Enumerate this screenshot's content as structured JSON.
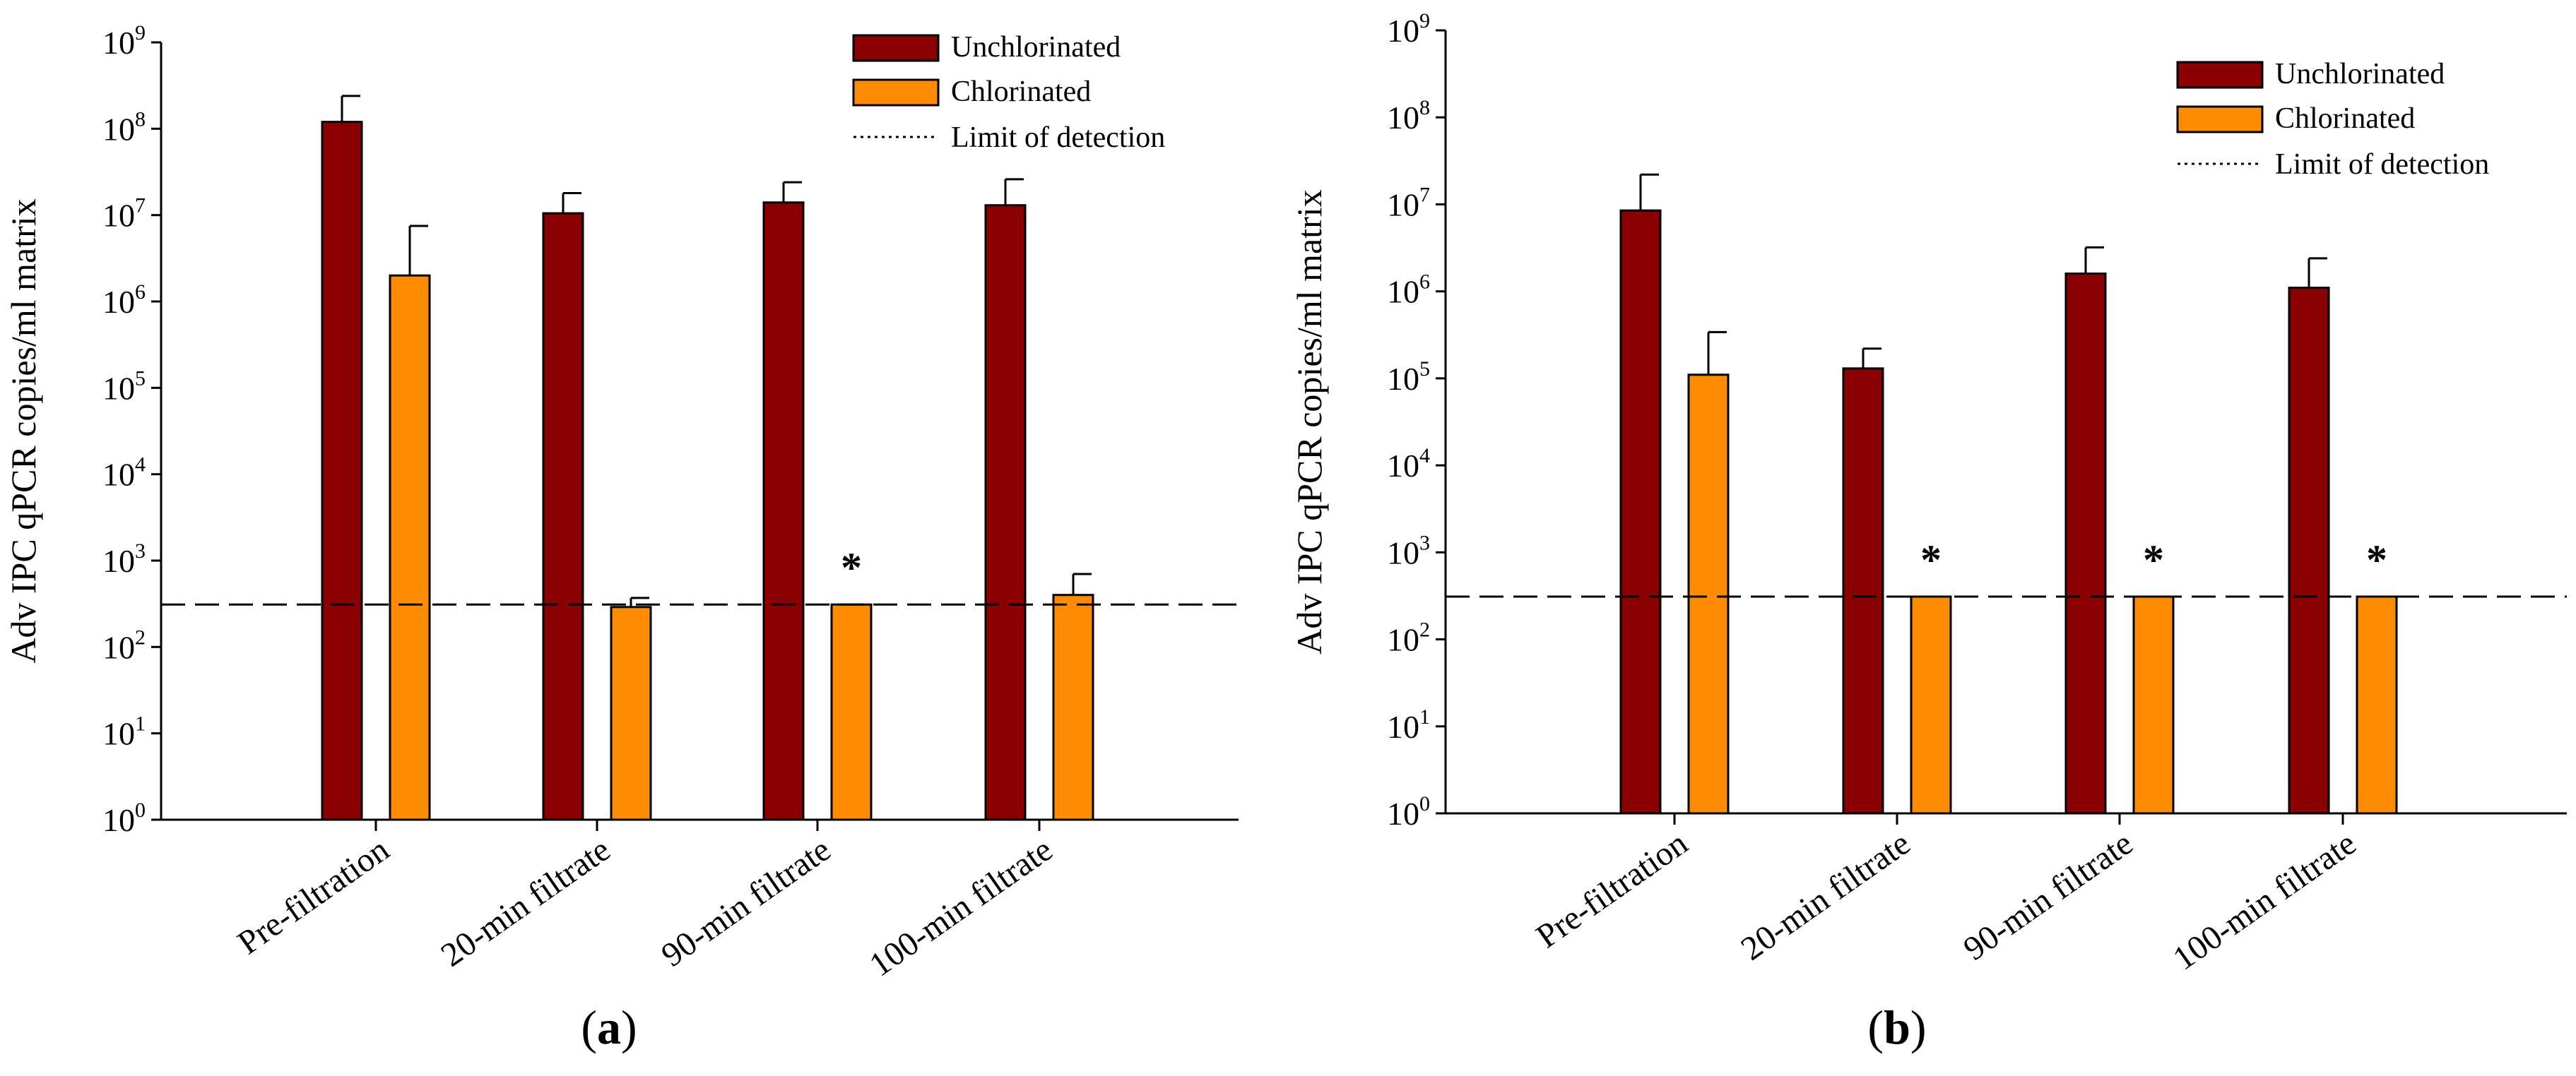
{
  "chart_data": [
    {
      "type": "bar",
      "panel": "(a)",
      "panel_open": "(",
      "panel_letter": "a",
      "panel_close": ")",
      "ylabel": "Adv IPC qPCR copies/ml matrix",
      "yscale": "log",
      "ylim": [
        1,
        1000000000
      ],
      "y_ticks": [
        {
          "base": "10",
          "exp": "0"
        },
        {
          "base": "10",
          "exp": "1"
        },
        {
          "base": "10",
          "exp": "2"
        },
        {
          "base": "10",
          "exp": "3"
        },
        {
          "base": "10",
          "exp": "4"
        },
        {
          "base": "10",
          "exp": "5"
        },
        {
          "base": "10",
          "exp": "6"
        },
        {
          "base": "10",
          "exp": "7"
        },
        {
          "base": "10",
          "exp": "8"
        },
        {
          "base": "10",
          "exp": "9"
        }
      ],
      "categories": [
        "Pre-filtration",
        "20-min filtrate",
        "90-min filtrate",
        "100-min filtrate"
      ],
      "series": [
        {
          "name": "Unchlorinated",
          "color": "#8b0000",
          "values": [
            120000000,
            10500000,
            14000000,
            13000000
          ],
          "errors": [
            240000000,
            18000000,
            24000000,
            26000000
          ]
        },
        {
          "name": "Chlorinated",
          "color": "#ff8c00",
          "values": [
            2000000,
            290,
            310,
            400
          ],
          "errors": [
            7500000,
            370,
            null,
            700
          ]
        }
      ],
      "significance": [
        "",
        "",
        "*",
        ""
      ],
      "limit_of_detection": 310,
      "lod_label": "Limit of detection",
      "legend_position": "top-right"
    },
    {
      "type": "bar",
      "panel": "(b)",
      "panel_open": "(",
      "panel_letter": "b",
      "panel_close": ")",
      "ylabel": "Adv IPC qPCR copies/ml matrix",
      "yscale": "log",
      "ylim": [
        1,
        1000000000
      ],
      "y_ticks": [
        {
          "base": "10",
          "exp": "0"
        },
        {
          "base": "10",
          "exp": "1"
        },
        {
          "base": "10",
          "exp": "2"
        },
        {
          "base": "10",
          "exp": "3"
        },
        {
          "base": "10",
          "exp": "4"
        },
        {
          "base": "10",
          "exp": "5"
        },
        {
          "base": "10",
          "exp": "6"
        },
        {
          "base": "10",
          "exp": "7"
        },
        {
          "base": "10",
          "exp": "8"
        },
        {
          "base": "10",
          "exp": "9"
        }
      ],
      "categories": [
        "Pre-filtration",
        "20-min filtrate",
        "90-min filtrate",
        "100-min filtrate"
      ],
      "series": [
        {
          "name": "Unchlorinated",
          "color": "#8b0000",
          "values": [
            8500000,
            130000,
            1600000,
            1100000
          ],
          "errors": [
            22000000,
            220000,
            3200000,
            2400000
          ]
        },
        {
          "name": "Chlorinated",
          "color": "#ff8c00",
          "values": [
            110000,
            310,
            310,
            310
          ],
          "errors": [
            340000,
            null,
            null,
            null
          ]
        }
      ],
      "significance": [
        "",
        "*",
        "*",
        "*"
      ],
      "limit_of_detection": 310,
      "lod_label": "Limit of detection",
      "legend_position": "top-right"
    }
  ]
}
